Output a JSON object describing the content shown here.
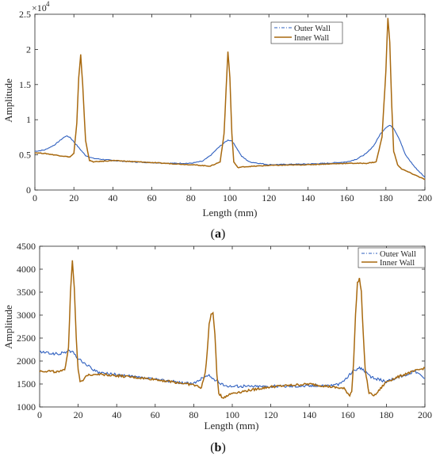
{
  "chart_data": [
    {
      "type": "line",
      "panel_label": "a",
      "xlabel": "Length (mm)",
      "ylabel": "Amplitude",
      "y_exponent_label": "×10",
      "y_exponent_power": "4",
      "xlim": [
        0,
        200
      ],
      "ylim": [
        0,
        2.5
      ],
      "y_multiplier": 10000,
      "xticks": [
        0,
        20,
        40,
        60,
        80,
        100,
        120,
        140,
        160,
        180,
        200
      ],
      "yticks": [
        0,
        0.5,
        1,
        1.5,
        2,
        2.5
      ],
      "ytick_labels": [
        "0",
        "0.5",
        "1",
        "1.5",
        "2",
        "2.5"
      ],
      "legend_position": "top-right",
      "series": [
        {
          "name": "Outer Wall",
          "color": "#2e5fbf",
          "style": "dash-dot",
          "x": [
            0,
            5,
            10,
            14,
            16,
            18,
            22,
            26,
            30,
            40,
            50,
            60,
            70,
            80,
            86,
            90,
            94,
            97,
            99,
            101,
            103,
            106,
            110,
            120,
            140,
            150,
            160,
            165,
            170,
            174,
            177,
            180,
            182,
            184,
            187,
            190,
            195,
            200
          ],
          "y": [
            0.55,
            0.57,
            0.64,
            0.73,
            0.77,
            0.75,
            0.62,
            0.49,
            0.45,
            0.42,
            0.4,
            0.39,
            0.38,
            0.38,
            0.41,
            0.49,
            0.6,
            0.67,
            0.71,
            0.7,
            0.62,
            0.48,
            0.4,
            0.36,
            0.37,
            0.38,
            0.4,
            0.44,
            0.52,
            0.64,
            0.79,
            0.89,
            0.92,
            0.88,
            0.72,
            0.5,
            0.32,
            0.18
          ]
        },
        {
          "name": "Inner Wall",
          "color": "#a8690f",
          "style": "solid",
          "x": [
            0,
            5,
            10,
            15,
            18,
            20,
            21.5,
            22.5,
            23.5,
            24.5,
            26,
            28,
            30,
            40,
            60,
            80,
            90,
            95,
            97,
            98,
            99,
            100,
            101,
            102,
            104,
            107,
            120,
            140,
            160,
            170,
            175,
            178,
            180,
            181,
            182,
            183,
            184,
            186,
            188,
            192,
            196,
            200
          ],
          "y": [
            0.53,
            0.52,
            0.5,
            0.48,
            0.47,
            0.52,
            0.95,
            1.6,
            1.93,
            1.5,
            0.7,
            0.42,
            0.4,
            0.42,
            0.39,
            0.36,
            0.34,
            0.4,
            0.8,
            1.4,
            1.97,
            1.6,
            0.8,
            0.4,
            0.32,
            0.33,
            0.35,
            0.36,
            0.38,
            0.38,
            0.4,
            0.75,
            1.7,
            2.45,
            2.1,
            1.2,
            0.55,
            0.36,
            0.3,
            0.25,
            0.2,
            0.15
          ]
        }
      ]
    },
    {
      "type": "line",
      "panel_label": "b",
      "xlabel": "Length (mm)",
      "ylabel": "Amplitude",
      "xlim": [
        0,
        200
      ],
      "ylim": [
        1000,
        4500
      ],
      "xticks": [
        0,
        20,
        40,
        60,
        80,
        100,
        120,
        140,
        160,
        180,
        200
      ],
      "yticks": [
        1000,
        1500,
        2000,
        2500,
        3000,
        3500,
        4000,
        4500
      ],
      "legend_position": "top-right",
      "series": [
        {
          "name": "Outer Wall",
          "color": "#2e5fbf",
          "style": "dash-dot",
          "x": [
            0,
            5,
            10,
            15,
            17,
            20,
            25,
            30,
            40,
            60,
            80,
            85,
            88,
            90,
            95,
            100,
            120,
            140,
            155,
            160,
            163,
            166,
            168,
            172,
            180,
            190,
            195,
            200
          ],
          "y": [
            2200,
            2170,
            2150,
            2220,
            2200,
            2050,
            1900,
            1750,
            1700,
            1600,
            1500,
            1650,
            1680,
            1620,
            1480,
            1450,
            1450,
            1460,
            1480,
            1650,
            1800,
            1850,
            1800,
            1650,
            1550,
            1700,
            1780,
            1620
          ]
        },
        {
          "name": "Inner Wall",
          "color": "#a8690f",
          "style": "solid",
          "x": [
            0,
            5,
            10,
            13,
            15,
            16,
            17,
            18,
            19,
            20,
            21,
            22,
            25,
            30,
            40,
            60,
            80,
            84,
            86,
            87,
            88,
            89,
            90,
            91,
            92,
            93,
            95,
            100,
            120,
            140,
            158,
            161,
            162,
            163,
            164,
            165,
            166,
            167,
            168,
            169,
            171,
            174,
            180,
            190,
            200
          ],
          "y": [
            1780,
            1780,
            1760,
            1800,
            2300,
            3500,
            4200,
            3600,
            2500,
            1800,
            1550,
            1550,
            1700,
            1720,
            1680,
            1600,
            1480,
            1420,
            1750,
            2200,
            2800,
            3000,
            3050,
            2600,
            1700,
            1300,
            1200,
            1300,
            1440,
            1500,
            1400,
            1250,
            1350,
            2000,
            3000,
            3700,
            3800,
            3500,
            2600,
            1800,
            1300,
            1250,
            1550,
            1720,
            1850
          ]
        }
      ]
    }
  ],
  "captions": [
    "(a)",
    "(b)"
  ]
}
